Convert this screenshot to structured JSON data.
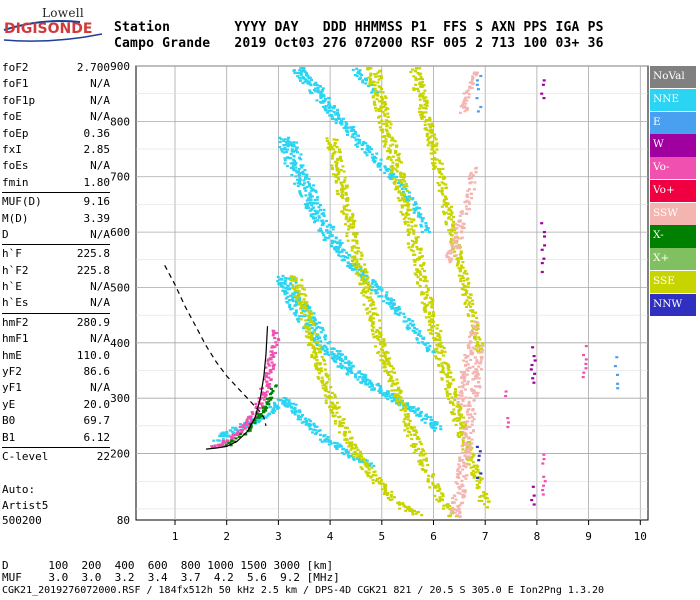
{
  "logo": {
    "line1": "Lowell",
    "line2": "DIGISONDE"
  },
  "header": {
    "row1": "Station        YYYY DAY   DDD HHMMSS P1  FFS S AXN PPS IGA PS",
    "row2": "Campo Grande   2019 Oct03 276 072000 RSF 005 2 713 100 03+ 36"
  },
  "params": [
    {
      "name": "foF2",
      "value": "2.700"
    },
    {
      "name": "foF1",
      "value": "N/A"
    },
    {
      "name": "foF1p",
      "value": "N/A"
    },
    {
      "name": "foE",
      "value": "N/A"
    },
    {
      "name": "foEp",
      "value": "0.36"
    },
    {
      "name": "fxI",
      "value": "2.85"
    },
    {
      "name": "foEs",
      "value": "N/A"
    },
    {
      "name": "fmin",
      "value": "1.80"
    },
    {
      "sep": true
    },
    {
      "name": "MUF(D)",
      "value": "9.16"
    },
    {
      "name": "M(D)",
      "value": "3.39"
    },
    {
      "name": "D",
      "value": "N/A"
    },
    {
      "sep": true
    },
    {
      "name": "h`F",
      "value": "225.8"
    },
    {
      "name": "h`F2",
      "value": "225.8"
    },
    {
      "name": "h`E",
      "value": "N/A"
    },
    {
      "name": "h`Es",
      "value": "N/A"
    },
    {
      "sep": true
    },
    {
      "name": "hmF2",
      "value": "280.9"
    },
    {
      "name": "hmF1",
      "value": "N/A"
    },
    {
      "name": "hmE",
      "value": "110.0"
    },
    {
      "name": "yF2",
      "value": "86.6"
    },
    {
      "name": "yF1",
      "value": "N/A"
    },
    {
      "name": "yE",
      "value": "20.0"
    },
    {
      "name": "B0",
      "value": "69.7"
    },
    {
      "name": "B1",
      "value": "6.12"
    },
    {
      "sep": true
    },
    {
      "name": "C-level",
      "value": "22"
    }
  ],
  "auto": {
    "line1": "Auto:",
    "line2": "Artist5",
    "line3": "500200"
  },
  "legend": [
    {
      "label": "NoVal",
      "color": "#808080"
    },
    {
      "label": "NNE",
      "color": "#2ad4f2"
    },
    {
      "label": "E",
      "color": "#4aa0f0"
    },
    {
      "label": "W",
      "color": "#a000a0"
    },
    {
      "label": "Vo-",
      "color": "#f050b0"
    },
    {
      "label": "Vo+",
      "color": "#f00040"
    },
    {
      "label": "SSW",
      "color": "#f4b4b0"
    },
    {
      "label": "X-",
      "color": "#008000"
    },
    {
      "label": "X+",
      "color": "#80c060"
    },
    {
      "label": "SSE",
      "color": "#c8d400"
    },
    {
      "label": "NNW",
      "color": "#3030c0"
    }
  ],
  "footer": {
    "line1": "D      100  200  400  600  800 1000 1500 3000 [km]",
    "line2": "MUF    3.0  3.0  3.2  3.4  3.7  4.2  5.6  9.2 [MHz]",
    "line3": "CGK21_2019276072000.RSF / 184fx512h 50 kHz 2.5 km / DPS-4D CGK21 821 / 20.5 S 305.0 E Ion2Png 1.3.20"
  },
  "chart_data": {
    "type": "scatter",
    "title": "",
    "xlabel": "",
    "ylabel": "",
    "xlim": [
      0.75,
      10.15
    ],
    "ylim": [
      80,
      900
    ],
    "x_ticks": [
      "1",
      "2",
      "3",
      "4",
      "5",
      "6",
      "7",
      "8",
      "9",
      "10"
    ],
    "y_ticks": [
      "80",
      "200",
      "300",
      "400",
      "500",
      "600",
      "700",
      "800",
      "900"
    ],
    "grid": true,
    "series": [
      {
        "name": "NNE",
        "color": "#2ad4f2",
        "traces": [
          {
            "points": [
              [
                1.82,
                220
              ],
              [
                1.9,
                232
              ],
              [
                2.0,
                238
              ],
              [
                2.1,
                243
              ],
              [
                2.4,
                255
              ],
              [
                2.8,
                275
              ],
              [
                2.95,
                290
              ],
              [
                3.1,
                300
              ],
              [
                3.5,
                260
              ],
              [
                3.9,
                225
              ],
              [
                4.2,
                210
              ],
              [
                4.5,
                192
              ],
              [
                4.8,
                180
              ]
            ],
            "width": [
              14,
              9
            ]
          },
          {
            "points": [
              [
                3.1,
                520
              ],
              [
                3.4,
                465
              ],
              [
                3.7,
                420
              ],
              [
                4.0,
                385
              ],
              [
                4.4,
                350
              ],
              [
                4.8,
                325
              ],
              [
                5.2,
                300
              ],
              [
                5.6,
                280
              ],
              [
                6.0,
                255
              ],
              [
                6.1,
                240
              ]
            ],
            "width": [
              22,
              10
            ]
          },
          {
            "points": [
              [
                3.1,
                770
              ],
              [
                3.4,
                700
              ],
              [
                3.7,
                640
              ],
              [
                4.0,
                590
              ],
              [
                4.4,
                545
              ],
              [
                4.8,
                505
              ],
              [
                5.2,
                470
              ],
              [
                5.6,
                425
              ],
              [
                5.95,
                380
              ]
            ],
            "width": [
              20,
              8
            ]
          },
          {
            "points": [
              [
                3.3,
                900
              ],
              [
                3.7,
                860
              ],
              [
                4.0,
                820
              ],
              [
                4.4,
                780
              ],
              [
                4.8,
                740
              ],
              [
                5.2,
                700
              ],
              [
                5.6,
                650
              ],
              [
                5.85,
                600
              ]
            ],
            "width": [
              16,
              8
            ]
          },
          {
            "points": [
              [
                4.4,
                900
              ],
              [
                4.6,
                880
              ],
              [
                4.9,
                850
              ]
            ],
            "width": [
              10,
              6
            ]
          }
        ]
      },
      {
        "name": "SSE",
        "color": "#c8d400",
        "traces": [
          {
            "points": [
              [
                3.3,
                520
              ],
              [
                3.6,
                420
              ],
              [
                3.9,
                320
              ],
              [
                4.2,
                250
              ],
              [
                4.5,
                200
              ],
              [
                4.8,
                160
              ],
              [
                5.1,
                130
              ],
              [
                5.4,
                105
              ],
              [
                5.7,
                90
              ]
            ],
            "width": [
              12,
              10
            ]
          },
          {
            "points": [
              [
                4.0,
                770
              ],
              [
                4.3,
                640
              ],
              [
                4.6,
                520
              ],
              [
                4.9,
                410
              ],
              [
                5.2,
                330
              ],
              [
                5.5,
                250
              ],
              [
                5.8,
                180
              ],
              [
                6.1,
                120
              ],
              [
                6.4,
                85
              ]
            ],
            "width": [
              12,
              10
            ]
          },
          {
            "points": [
              [
                4.8,
                900
              ],
              [
                5.0,
                810
              ],
              [
                5.3,
                700
              ],
              [
                5.6,
                580
              ],
              [
                5.9,
                460
              ],
              [
                6.2,
                350
              ],
              [
                6.5,
                250
              ],
              [
                6.8,
                160
              ],
              [
                7.0,
                100
              ]
            ],
            "width": [
              14,
              10
            ]
          },
          {
            "points": [
              [
                5.6,
                900
              ],
              [
                5.8,
                820
              ],
              [
                6.0,
                740
              ],
              [
                6.3,
                620
              ],
              [
                6.6,
                500
              ],
              [
                6.9,
                380
              ]
            ],
            "width": [
              12,
              8
            ]
          }
        ]
      },
      {
        "name": "SSW",
        "color": "#f4b4b0",
        "traces": [
          {
            "points": [
              [
                6.4,
                90
              ],
              [
                6.5,
                150
              ],
              [
                6.6,
                210
              ],
              [
                6.7,
                270
              ],
              [
                6.8,
                330
              ],
              [
                6.85,
                400
              ]
            ],
            "width": [
              12,
              8
            ]
          },
          {
            "points": [
              [
                6.5,
                290
              ],
              [
                6.55,
                330
              ],
              [
                6.65,
                380
              ],
              [
                6.75,
                420
              ],
              [
                6.8,
                445
              ]
            ],
            "width": [
              10,
              6
            ]
          },
          {
            "points": [
              [
                6.3,
                550
              ],
              [
                6.4,
                580
              ],
              [
                6.5,
                620
              ],
              [
                6.6,
                650
              ],
              [
                6.7,
                680
              ],
              [
                6.75,
                720
              ]
            ],
            "width": [
              12,
              6
            ]
          },
          {
            "points": [
              [
                6.55,
                820
              ],
              [
                6.65,
                860
              ],
              [
                6.75,
                880
              ],
              [
                6.8,
                895
              ]
            ],
            "width": [
              8,
              5
            ]
          }
        ]
      },
      {
        "name": "Vo-",
        "color": "#f050b0",
        "traces": [
          {
            "points": [
              [
                1.75,
                215
              ],
              [
                2.0,
                225
              ],
              [
                2.2,
                240
              ],
              [
                2.4,
                260
              ],
              [
                2.6,
                290
              ],
              [
                2.75,
                330
              ],
              [
                2.85,
                380
              ],
              [
                2.95,
                430
              ]
            ],
            "width": [
              8,
              8
            ]
          }
        ]
      },
      {
        "name": "X-",
        "color": "#008000",
        "traces": [
          {
            "points": [
              [
                2.0,
                218
              ],
              [
                2.25,
                232
              ],
              [
                2.45,
                250
              ],
              [
                2.65,
                275
              ],
              [
                2.8,
                300
              ],
              [
                2.9,
                330
              ]
            ],
            "width": [
              6,
              5
            ]
          }
        ]
      }
    ],
    "model_curves": [
      {
        "name": "profile_solid",
        "style": "solid",
        "points": [
          [
            1.6,
            208
          ],
          [
            1.8,
            210
          ],
          [
            2.0,
            213
          ],
          [
            2.2,
            222
          ],
          [
            2.4,
            240
          ],
          [
            2.55,
            265
          ],
          [
            2.65,
            300
          ],
          [
            2.72,
            340
          ],
          [
            2.76,
            380
          ],
          [
            2.79,
            430
          ]
        ]
      },
      {
        "name": "profile_dashed",
        "style": "dashed",
        "points": [
          [
            0.8,
            540
          ],
          [
            1.0,
            505
          ],
          [
            1.2,
            465
          ],
          [
            1.4,
            430
          ],
          [
            1.6,
            395
          ],
          [
            1.8,
            365
          ],
          [
            2.0,
            340
          ],
          [
            2.2,
            320
          ],
          [
            2.4,
            300
          ],
          [
            2.55,
            285
          ],
          [
            2.65,
            275
          ],
          [
            2.72,
            265
          ],
          [
            2.76,
            250
          ]
        ]
      }
    ]
  }
}
